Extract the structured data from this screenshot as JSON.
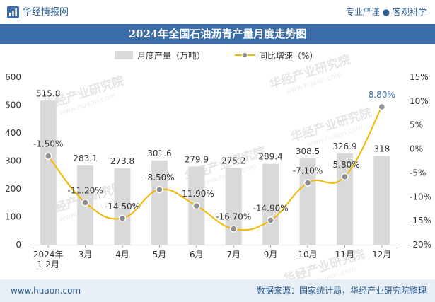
{
  "header": {
    "brand": "华经情报网",
    "tagline": "专业严谨 ● 客观科学"
  },
  "footer": {
    "url": "www.huaon.com",
    "source": "数据来源：国家统计局，华经产业研究院整理"
  },
  "watermark": {
    "text_cn": "华经产业研究院",
    "text_url": "www.huaon.com"
  },
  "colors": {
    "bar": "#d9d9d9",
    "line": "#f5b800",
    "marker": "#8d8d8d",
    "title_bg": "#3b6ea8",
    "last_label": "#3b6ea8"
  },
  "chart_data": {
    "type": "bar",
    "title": "2024年全国石油沥青产量月度走势图",
    "categories": [
      "2024年\n1-2月",
      "3月",
      "4月",
      "5月",
      "6月",
      "7月",
      "9月",
      "10月",
      "11月",
      "12月"
    ],
    "legend_position": "top",
    "grid": false,
    "series": [
      {
        "name": "月度产量（万吨）",
        "type": "bar",
        "axis": "left",
        "values": [
          515.8,
          283.1,
          273.8,
          301.6,
          279.9,
          275.2,
          289.4,
          308.5,
          326.9,
          318
        ],
        "labels": [
          "515.8",
          "283.1",
          "273.8",
          "301.6",
          "279.9",
          "275.2",
          "289.4",
          "308.5",
          "326.9",
          "318"
        ]
      },
      {
        "name": "同比增速（%）",
        "type": "line",
        "axis": "right",
        "values": [
          -1.5,
          -11.2,
          -14.5,
          -8.5,
          -11.9,
          -16.7,
          -14.9,
          -7.1,
          -5.8,
          8.8
        ],
        "labels": [
          "-1.50%",
          "-11.20%",
          "-14.50%",
          "-8.50%",
          "-11.90%",
          "-16.70%",
          "-14.90%",
          "-7.10%",
          "-5.80%",
          "8.80%"
        ]
      }
    ],
    "y_left": {
      "min": 0,
      "max": 600,
      "ticks": [
        "0",
        "100",
        "200",
        "300",
        "400",
        "500",
        "600"
      ]
    },
    "y_right": {
      "min": -20,
      "max": 15,
      "ticks": [
        "-20%",
        "-15%",
        "-10%",
        "-5%",
        "0%",
        "5%",
        "10%",
        "15%"
      ]
    }
  }
}
